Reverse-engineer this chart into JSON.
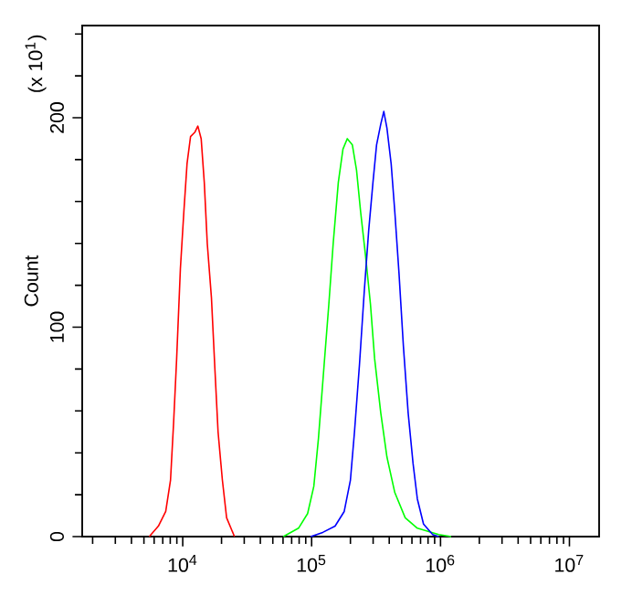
{
  "chart_data": {
    "type": "line",
    "ylabel": "Count",
    "annotations": [
      "(x 10$^{1}$)"
    ],
    "log": "x",
    "grid": false,
    "xlim": [
      1660,
      17000000
    ],
    "ylim": [
      0,
      244
    ],
    "xticks": [
      {
        "value": 2000,
        "label": null
      },
      {
        "value": 3000,
        "label": null
      },
      {
        "value": 4000,
        "label": null
      },
      {
        "value": 5000,
        "label": null
      },
      {
        "value": 6000,
        "label": null
      },
      {
        "value": 7000,
        "label": null
      },
      {
        "value": 8000,
        "label": null
      },
      {
        "value": 9000,
        "label": null
      },
      {
        "value": 10000,
        "label": "10$^{4}$"
      },
      {
        "value": 20000,
        "label": null
      },
      {
        "value": 30000,
        "label": null
      },
      {
        "value": 40000,
        "label": null
      },
      {
        "value": 50000,
        "label": null
      },
      {
        "value": 60000,
        "label": null
      },
      {
        "value": 70000,
        "label": null
      },
      {
        "value": 80000,
        "label": null
      },
      {
        "value": 90000,
        "label": null
      },
      {
        "value": 100000,
        "label": "10$^{5}$"
      },
      {
        "value": 200000,
        "label": null
      },
      {
        "value": 300000,
        "label": null
      },
      {
        "value": 400000,
        "label": null
      },
      {
        "value": 500000,
        "label": null
      },
      {
        "value": 600000,
        "label": null
      },
      {
        "value": 700000,
        "label": null
      },
      {
        "value": 800000,
        "label": null
      },
      {
        "value": 900000,
        "label": null
      },
      {
        "value": 1000000,
        "label": "10$^{6}$"
      },
      {
        "value": 2000000,
        "label": null
      },
      {
        "value": 3000000,
        "label": null
      },
      {
        "value": 4000000,
        "label": null
      },
      {
        "value": 5000000,
        "label": null
      },
      {
        "value": 6000000,
        "label": null
      },
      {
        "value": 7000000,
        "label": null
      },
      {
        "value": 8000000,
        "label": null
      },
      {
        "value": 9000000,
        "label": null
      },
      {
        "value": 10000000,
        "label": "10$^{7}$"
      }
    ],
    "yticks": [
      0,
      {
        "value": 20,
        "label": null
      },
      {
        "value": 40,
        "label": null
      },
      {
        "value": 60,
        "label": null
      },
      {
        "value": 80,
        "label": null
      },
      100,
      {
        "value": 120,
        "label": null
      },
      {
        "value": 140,
        "label": null
      },
      {
        "value": 160,
        "label": null
      },
      {
        "value": 180,
        "label": null
      },
      200,
      {
        "value": 220,
        "label": null
      },
      {
        "value": 240,
        "label": null
      }
    ],
    "series": [
      {
        "color": "#ff0000",
        "x": [
          5500,
          6470,
          7380,
          8040,
          8490,
          8970,
          9590,
          10200,
          10800,
          11500,
          12400,
          13100,
          13900,
          14700,
          15500,
          16700,
          17800,
          18800,
          20300,
          21900,
          25200
        ],
        "values": [
          0,
          5,
          12,
          27,
          54,
          85,
          128,
          155,
          178,
          191,
          193,
          196,
          190,
          169,
          140,
          114,
          79,
          50,
          27,
          9,
          0
        ]
      },
      {
        "color": "#00ff00",
        "x": [
          60300,
          79100,
          93100,
          104000,
          113000,
          125000,
          136000,
          147000,
          161000,
          175000,
          189000,
          207000,
          223000,
          240000,
          262000,
          286000,
          308000,
          344000,
          384000,
          442000,
          532000,
          661000,
          968000,
          1210000
        ],
        "values": [
          0,
          4,
          11,
          24,
          47,
          82,
          111,
          140,
          169,
          185,
          190,
          187,
          175,
          155,
          134,
          111,
          85,
          59,
          38,
          21,
          9,
          4,
          1,
          0
        ]
      },
      {
        "color": "#0000ff",
        "x": [
          98400,
          122000,
          152000,
          179000,
          200000,
          215000,
          235000,
          256000,
          277000,
          299000,
          319000,
          344000,
          363000,
          384000,
          414000,
          442000,
          476000,
          515000,
          561000,
          612000,
          661000,
          738000,
          869000,
          968000
        ],
        "values": [
          0,
          2,
          5,
          12,
          27,
          50,
          82,
          117,
          146,
          169,
          187,
          197,
          203,
          195,
          178,
          155,
          126,
          91,
          59,
          35,
          18,
          6,
          1,
          0
        ]
      }
    ]
  }
}
